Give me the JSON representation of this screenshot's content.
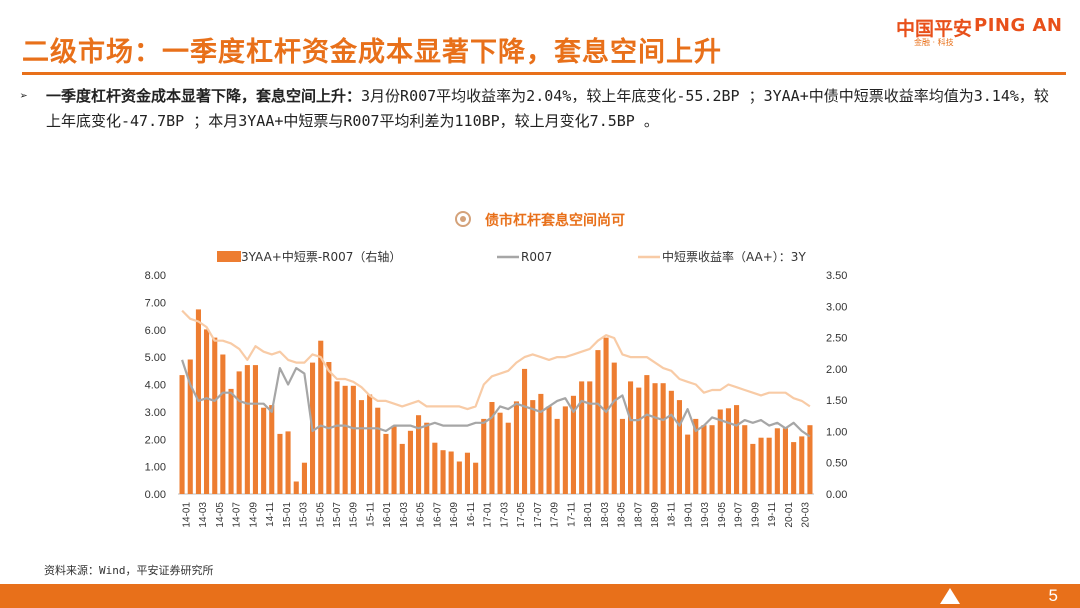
{
  "header": {
    "title": "二级市场：一季度杠杆资金成本显著下降，套息空间上升",
    "logo_cn": "中国平安",
    "logo_en": "PING AN",
    "logo_tag": "金融 · 科技"
  },
  "bullet": {
    "arrow": "➢",
    "bold": "一季度杠杆资金成本显著下降，套息空间上升：",
    "text": "3月份R007平均收益率为2.04%，较上年底变化-55.2BP ；3YAA+中债中短票收益率均值为3.14%，较上年底变化-47.7BP ；本月3YAA+中短票与R007平均利差为110BP，较上月变化7.5BP 。"
  },
  "source": "资料来源：Wind，平安证券研究所",
  "page_number": "5",
  "colors": {
    "accent": "#e8701a",
    "bar": "#ed7d31",
    "r007": "#a6a6a6",
    "yield": "#f8cba6"
  },
  "chart_data": {
    "type": "bar+line",
    "title": "债市杠杆套息空间尚可",
    "legend": [
      "3YAA+中短票-R007（右轴）",
      "R007",
      "中短票收益率（AA+）：3Y"
    ],
    "left_axis": {
      "min": 0,
      "max": 8,
      "ticks": [
        "0.00",
        "1.00",
        "2.00",
        "3.00",
        "4.00",
        "5.00",
        "6.00",
        "7.00",
        "8.00"
      ]
    },
    "right_axis": {
      "min": 0,
      "max": 3.5,
      "ticks": [
        "0.00",
        "0.50",
        "1.00",
        "1.50",
        "2.00",
        "2.50",
        "3.00",
        "3.50"
      ]
    },
    "x_labels": [
      "14-01",
      "14-03",
      "14-05",
      "14-07",
      "14-09",
      "14-11",
      "15-01",
      "15-03",
      "15-05",
      "15-07",
      "15-09",
      "15-11",
      "16-01",
      "16-03",
      "16-05",
      "16-07",
      "16-09",
      "16-11",
      "17-01",
      "17-03",
      "17-05",
      "17-07",
      "17-09",
      "17-11",
      "18-01",
      "18-03",
      "18-05",
      "18-07",
      "18-09",
      "18-11",
      "19-01",
      "19-03",
      "19-05",
      "19-07",
      "19-09",
      "19-11",
      "20-01",
      "20-03"
    ],
    "series": [
      {
        "name": "3YAA+中短票-R007（右轴）",
        "axis": "right",
        "values": [
          1.9,
          2.15,
          2.95,
          2.63,
          2.5,
          2.23,
          1.68,
          1.96,
          2.06,
          2.06,
          1.38,
          1.42,
          0.96,
          1.0,
          0.2,
          0.5,
          2.1,
          2.45,
          2.11,
          1.8,
          1.73,
          1.73,
          1.5,
          1.59,
          1.38,
          0.96,
          1.09,
          0.8,
          1.01,
          1.26,
          1.14,
          0.82,
          0.7,
          0.68,
          0.52,
          0.66,
          0.5,
          1.2,
          1.47,
          1.3,
          1.14,
          1.48,
          2.0,
          1.5,
          1.6,
          1.4,
          1.2,
          1.4,
          1.57,
          1.8,
          1.8,
          2.3,
          2.5,
          2.1,
          1.2,
          1.8,
          1.7,
          1.9,
          1.77,
          1.77,
          1.65,
          1.5,
          0.95,
          1.2,
          1.1,
          1.1,
          1.35,
          1.37,
          1.42,
          1.1,
          0.8,
          0.9,
          0.9,
          1.05,
          1.05,
          0.83,
          0.92,
          1.1
        ]
      },
      {
        "name": "R007",
        "axis": "left",
        "values": [
          4.9,
          4.0,
          3.4,
          3.5,
          3.4,
          3.7,
          3.7,
          3.4,
          3.3,
          3.3,
          3.3,
          3.0,
          4.6,
          4.0,
          4.6,
          4.4,
          2.3,
          2.5,
          2.4,
          2.5,
          2.5,
          2.4,
          2.4,
          2.4,
          2.4,
          2.3,
          2.5,
          2.5,
          2.5,
          2.4,
          2.5,
          2.6,
          2.5,
          2.5,
          2.5,
          2.5,
          2.6,
          2.6,
          2.8,
          3.2,
          3.1,
          3.3,
          3.2,
          3.1,
          3.0,
          3.2,
          3.4,
          3.5,
          3.0,
          3.4,
          3.3,
          3.3,
          3.0,
          3.4,
          3.6,
          2.7,
          2.7,
          2.9,
          2.8,
          2.7,
          2.9,
          2.5,
          3.1,
          2.3,
          2.5,
          2.8,
          2.7,
          2.6,
          2.5,
          2.7,
          2.6,
          2.7,
          2.5,
          2.6,
          2.4,
          2.6,
          2.3,
          2.1
        ]
      },
      {
        "name": "中短票收益率（AA+）：3Y",
        "axis": "left",
        "values": [
          6.7,
          6.4,
          6.3,
          6.1,
          5.6,
          5.6,
          5.5,
          5.3,
          4.9,
          5.4,
          5.2,
          5.1,
          5.2,
          4.9,
          4.8,
          4.8,
          5.1,
          5.0,
          4.5,
          4.2,
          4.2,
          4.1,
          3.9,
          3.6,
          3.4,
          3.4,
          3.3,
          3.2,
          3.3,
          3.4,
          3.2,
          3.2,
          3.2,
          3.2,
          3.2,
          3.1,
          3.2,
          4.0,
          4.3,
          4.4,
          4.5,
          4.8,
          5.0,
          5.1,
          5.0,
          4.9,
          5.0,
          5.0,
          5.1,
          5.2,
          5.3,
          5.6,
          5.8,
          5.7,
          5.1,
          5.0,
          5.0,
          5.0,
          4.8,
          4.6,
          4.5,
          4.2,
          4.1,
          4.0,
          3.7,
          3.8,
          3.8,
          4.0,
          3.9,
          3.8,
          3.7,
          3.6,
          3.7,
          3.7,
          3.7,
          3.5,
          3.4,
          3.2
        ]
      }
    ]
  }
}
